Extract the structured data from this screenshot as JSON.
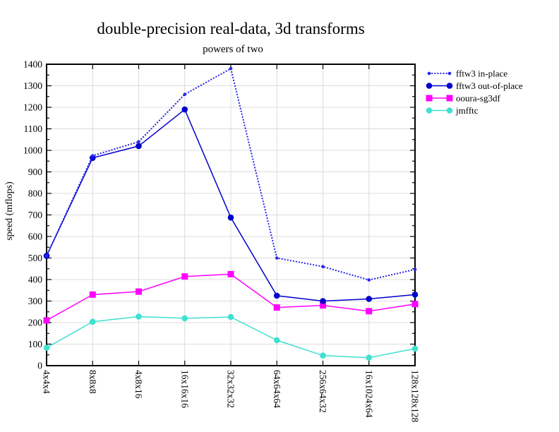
{
  "chart_data": {
    "type": "line",
    "title": "double-precision real-data, 3d transforms",
    "subtitle": "powers of two",
    "xlabel": "",
    "ylabel": "speed (mflops)",
    "ylim": [
      0,
      1400
    ],
    "ytick_step": 100,
    "ytick_minor_step": 50,
    "grid": true,
    "legend_position": "right-outside-top",
    "axis_color": "#000000",
    "grid_color": "#dcdcdc",
    "categories": [
      "4x4x4",
      "8x8x8",
      "4x8x16",
      "16x16x16",
      "32x32x32",
      "64x64x64",
      "256x64x32",
      "16x1024x64",
      "128x128x128"
    ],
    "series": [
      {
        "name": "fftw3 in-place",
        "color": "#2626ee",
        "line_style": "dotted",
        "marker": "circle-small",
        "values": [
          510,
          975,
          1040,
          1260,
          1380,
          500,
          460,
          398,
          447
        ]
      },
      {
        "name": "fftw3 out-of-place",
        "color": "#0000cd",
        "line_style": "solid",
        "marker": "circle",
        "values": [
          510,
          965,
          1020,
          1190,
          688,
          325,
          300,
          310,
          330
        ]
      },
      {
        "name": "ooura-sg3df",
        "color": "#ff00ff",
        "line_style": "solid",
        "marker": "square",
        "values": [
          210,
          330,
          344,
          414,
          425,
          270,
          280,
          253,
          286
        ]
      },
      {
        "name": "jmfftc",
        "color": "#40e0d0",
        "line_style": "solid",
        "marker": "circle",
        "values": [
          83,
          204,
          228,
          220,
          226,
          118,
          47,
          37,
          79
        ]
      }
    ]
  }
}
